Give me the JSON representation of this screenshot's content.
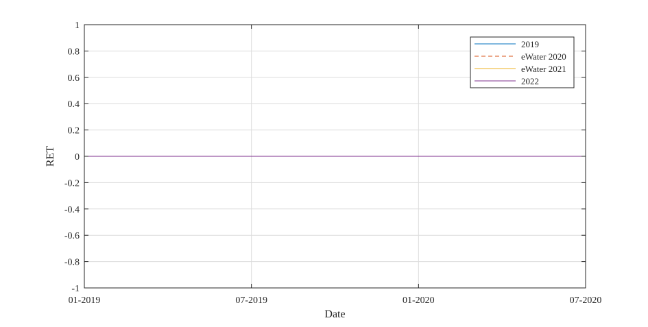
{
  "chart_data": {
    "type": "line",
    "xlabel": "Date",
    "ylabel": "RET",
    "x_ticks": [
      "01-2019",
      "07-2019",
      "01-2020",
      "07-2020"
    ],
    "x_range": [
      "2019-01",
      "2020-07"
    ],
    "ylim": [
      -1,
      1
    ],
    "y_ticks": [
      "1",
      "0.8",
      "0.6",
      "0.4",
      "0.2",
      "0",
      "-0.2",
      "-0.4",
      "-0.6",
      "-0.8",
      "-1"
    ],
    "grid": true,
    "legend_position": "top-right",
    "series": [
      {
        "name": "2019",
        "color": "#0072bd",
        "style": "solid",
        "points": [
          {
            "x": "2019-01",
            "y": 0
          },
          {
            "x": "2020-07",
            "y": 0
          }
        ]
      },
      {
        "name": "eWater 2020",
        "color": "#d95319",
        "style": "dashed",
        "points": [
          {
            "x": "2019-01",
            "y": 0
          },
          {
            "x": "2020-07",
            "y": 0
          }
        ]
      },
      {
        "name": "eWater 2021",
        "color": "#edb120",
        "style": "solid",
        "points": [
          {
            "x": "2019-01",
            "y": 0
          },
          {
            "x": "2020-07",
            "y": 0
          }
        ]
      },
      {
        "name": "2022",
        "color": "#7e2f8e",
        "style": "solid",
        "points": [
          {
            "x": "2019-01",
            "y": 0
          },
          {
            "x": "2020-07",
            "y": 0
          }
        ]
      }
    ]
  }
}
